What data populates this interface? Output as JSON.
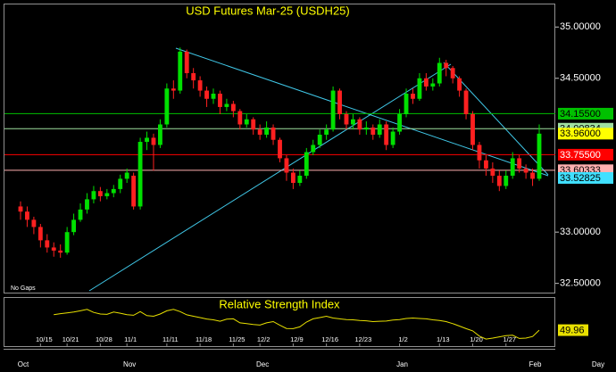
{
  "chart_data": {
    "type": "candlestick",
    "title": "USD Futures Mar-25 (USDH25)",
    "note": "No Gaps",
    "x_unit": "Day",
    "categories": [
      null,
      null,
      null,
      "10/15",
      null,
      null,
      null,
      "10/21",
      null,
      null,
      null,
      null,
      "10/28",
      null,
      null,
      null,
      "11/1",
      null,
      null,
      null,
      null,
      null,
      "11/11",
      null,
      null,
      null,
      null,
      "11/18",
      null,
      null,
      null,
      null,
      "11/25",
      null,
      null,
      null,
      "12/2",
      null,
      null,
      null,
      null,
      "12/9",
      null,
      null,
      null,
      null,
      "12/16",
      null,
      null,
      null,
      null,
      "12/23",
      null,
      null,
      null,
      null,
      null,
      "1/2",
      null,
      null,
      null,
      null,
      null,
      "1/13",
      null,
      null,
      null,
      null,
      "1/20",
      null,
      null,
      null,
      null,
      "1/27",
      null,
      null,
      null,
      null,
      null
    ],
    "months": [
      "Oct",
      null,
      null,
      null,
      null,
      null,
      null,
      null,
      null,
      null,
      null,
      null,
      null,
      null,
      null,
      null,
      "Nov",
      null,
      null,
      null,
      null,
      null,
      null,
      null,
      null,
      null,
      null,
      null,
      null,
      null,
      null,
      null,
      null,
      null,
      null,
      null,
      "Dec",
      null,
      null,
      null,
      null,
      null,
      null,
      null,
      null,
      null,
      null,
      null,
      null,
      null,
      null,
      null,
      null,
      null,
      null,
      null,
      null,
      "Jan",
      null,
      null,
      null,
      null,
      null,
      null,
      null,
      null,
      null,
      null,
      null,
      null,
      null,
      null,
      null,
      null,
      null,
      null,
      null,
      "Feb"
    ],
    "open": [
      33.25,
      33.2,
      33.12,
      33.05,
      32.92,
      32.85,
      32.82,
      32.8,
      33.0,
      33.12,
      33.22,
      33.32,
      33.4,
      33.35,
      33.38,
      33.42,
      33.52,
      33.55,
      33.25,
      33.88,
      33.92,
      33.85,
      34.05,
      34.4,
      34.38,
      34.76,
      34.55,
      34.48,
      34.38,
      34.3,
      34.35,
      34.22,
      34.25,
      34.18,
      34.05,
      34.1,
      34.0,
      33.95,
      34.02,
      33.9,
      33.72,
      33.58,
      33.48,
      33.55,
      33.78,
      33.85,
      33.95,
      34.0,
      34.38,
      34.15,
      34.05,
      34.1,
      34.0,
      34.02,
      33.95,
      34.05,
      33.85,
      33.98,
      34.15,
      34.35,
      34.3,
      34.5,
      34.42,
      34.45,
      34.65,
      34.6,
      34.5,
      34.38,
      34.15,
      33.85,
      33.7,
      33.62,
      33.55,
      33.45,
      33.55,
      33.72,
      33.62,
      33.58,
      33.52
    ],
    "high": [
      33.3,
      33.25,
      33.15,
      33.08,
      32.98,
      32.9,
      32.88,
      33.05,
      33.18,
      33.28,
      33.38,
      33.45,
      33.44,
      33.42,
      33.46,
      33.56,
      33.62,
      33.58,
      33.92,
      33.98,
      33.96,
      34.1,
      34.45,
      34.48,
      34.8,
      34.78,
      34.6,
      34.52,
      34.42,
      34.4,
      34.38,
      34.3,
      34.28,
      34.2,
      34.15,
      34.12,
      34.05,
      34.08,
      34.05,
      33.92,
      33.75,
      33.62,
      33.6,
      33.82,
      33.9,
      34.0,
      34.05,
      34.42,
      34.4,
      34.18,
      34.15,
      34.12,
      34.08,
      34.05,
      34.1,
      34.08,
      34.02,
      34.2,
      34.4,
      34.4,
      34.55,
      34.55,
      34.5,
      34.7,
      34.68,
      34.62,
      34.52,
      34.4,
      34.18,
      33.88,
      33.75,
      33.68,
      33.6,
      33.6,
      33.78,
      33.75,
      33.66,
      33.62,
      34.05
    ],
    "low": [
      33.12,
      33.05,
      32.98,
      32.85,
      32.8,
      32.76,
      32.75,
      32.78,
      32.97,
      33.1,
      33.18,
      33.28,
      33.3,
      33.32,
      33.34,
      33.38,
      33.48,
      33.22,
      33.22,
      33.8,
      33.6,
      33.82,
      34.02,
      34.3,
      34.35,
      34.5,
      34.4,
      34.32,
      34.22,
      34.25,
      34.15,
      34.18,
      34.12,
      34.0,
      34.02,
      33.95,
      33.9,
      33.92,
      33.85,
      33.68,
      33.5,
      33.42,
      33.45,
      33.52,
      33.75,
      33.82,
      33.9,
      33.98,
      34.1,
      34.0,
      34.0,
      33.95,
      33.95,
      33.9,
      33.92,
      33.8,
      33.82,
      33.95,
      34.12,
      34.25,
      34.28,
      34.38,
      34.38,
      34.42,
      34.52,
      34.45,
      34.32,
      34.1,
      33.8,
      33.62,
      33.55,
      33.48,
      33.4,
      33.42,
      33.52,
      33.58,
      33.52,
      33.45,
      33.5
    ],
    "close": [
      33.2,
      33.12,
      33.05,
      32.92,
      32.85,
      32.82,
      32.8,
      33.0,
      33.12,
      33.22,
      33.32,
      33.4,
      33.35,
      33.38,
      33.42,
      33.52,
      33.58,
      33.25,
      33.88,
      33.92,
      33.85,
      34.05,
      34.4,
      34.38,
      34.76,
      34.55,
      34.48,
      34.38,
      34.3,
      34.35,
      34.22,
      34.25,
      34.18,
      34.05,
      34.1,
      34.0,
      33.95,
      34.02,
      33.9,
      33.72,
      33.58,
      33.48,
      33.55,
      33.78,
      33.85,
      33.95,
      34.0,
      34.38,
      34.15,
      34.05,
      34.1,
      34.0,
      34.02,
      33.95,
      34.05,
      33.85,
      33.98,
      34.15,
      34.35,
      34.3,
      34.5,
      34.42,
      34.45,
      34.65,
      34.6,
      34.5,
      34.38,
      34.15,
      33.85,
      33.7,
      33.62,
      33.55,
      33.45,
      33.55,
      33.72,
      33.62,
      33.58,
      33.52,
      33.96
    ],
    "up_color": "#00e000",
    "down_color": "#ff2020",
    "ylim": [
      32.41,
      35.22
    ],
    "yticks": [
      {
        "value": 32.5,
        "label": "32.50000"
      },
      {
        "value": 33.0,
        "label": "33.00000"
      },
      {
        "value": 34.5,
        "label": "34.50000"
      },
      {
        "value": 35.0,
        "label": "35.00000"
      }
    ],
    "levels": [
      {
        "value": 34.155,
        "label": "34.15500",
        "color": "#00c000",
        "line": true
      },
      {
        "value": 34.00834,
        "label": "34.00834",
        "color": "#a0e0a0",
        "line": true
      },
      {
        "value": 33.96,
        "label": "33.96000",
        "color": "#ffff00",
        "line": false
      },
      {
        "value": 33.755,
        "label": "33.75500",
        "color": "#ff0000",
        "line": true
      },
      {
        "value": 33.60333,
        "label": "33.60333",
        "color": "#ffb0b0",
        "line": true
      },
      {
        "value": 33.52825,
        "label": "33.52825",
        "color": "#40e0ff",
        "line": false
      }
    ],
    "rsi": {
      "title": "Relative Strength Index",
      "color": "#e8e000",
      "ylim": [
        40,
        70
      ],
      "values": [
        null,
        null,
        null,
        null,
        null,
        59.6,
        60.2,
        60.7,
        61.3,
        62.0,
        62.9,
        61.0,
        60.0,
        59.8,
        61.2,
        60.5,
        59.6,
        59.2,
        61.5,
        59.0,
        58.6,
        60.0,
        62.0,
        62.9,
        61.5,
        59.5,
        58.6,
        57.8,
        56.9,
        56.4,
        55.5,
        56.8,
        57.0,
        54.5,
        54.0,
        53.5,
        53.1,
        54.5,
        55.3,
        53.0,
        51.0,
        50.9,
        52.0,
        55.0,
        57.0,
        57.8,
        58.6,
        57.5,
        57.0,
        56.5,
        56.4,
        56.0,
        55.8,
        55.3,
        55.5,
        55.6,
        56.2,
        56.5,
        57.2,
        57.5,
        57.2,
        57.0,
        56.4,
        56.0,
        55.3,
        54.0,
        52.5,
        50.9,
        49.5,
        46.2,
        44.4,
        45.0,
        45.8,
        46.5,
        46.8,
        44.8,
        45.0,
        46.0,
        49.96
      ]
    }
  }
}
